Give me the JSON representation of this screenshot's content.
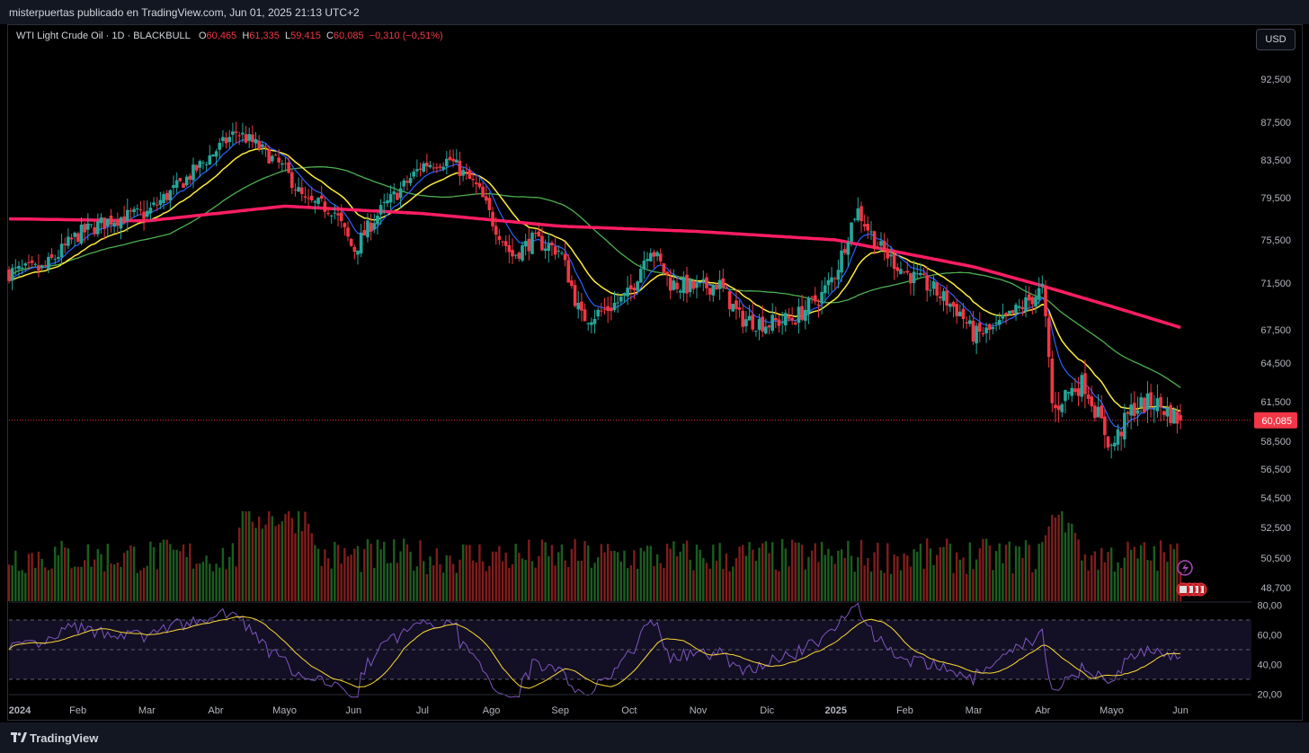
{
  "header": {
    "published_text": "misterpuertas publicado en TradingView.com, Jun 01, 2025 21:13 UTC+2"
  },
  "legend": {
    "symbol": "WTI Light Crude Oil · 1D · BLACKBULL",
    "o_label": "O",
    "o_value": "60,465",
    "h_label": "H",
    "h_value": "61,335",
    "l_label": "L",
    "l_value": "59,415",
    "c_label": "C",
    "c_value": "60,085",
    "change": "−0,310 (−0,51%)"
  },
  "currency_button": "USD",
  "footer": {
    "brand": "TradingView"
  },
  "colors": {
    "up": "#26a69a",
    "down": "#f23645",
    "ema_fast": "#2962ff",
    "ema_mid": "#ffeb3b",
    "sma_slow": "#4caf50",
    "sma_long": "#ff1d64",
    "rsi": "#7e57c2",
    "rsi_ma": "#fdd835"
  },
  "chart_data": {
    "type": "candlestick",
    "price_axis": {
      "ticks": [
        "92,500",
        "87,500",
        "83,500",
        "79,500",
        "75,500",
        "71,500",
        "67,500",
        "64,500",
        "61,500",
        "58,500",
        "56,500",
        "54,500",
        "52,500",
        "50,500",
        "48,700"
      ],
      "last_price_label": "60,085",
      "ylim": [
        47.5,
        95
      ]
    },
    "time_axis": {
      "labels": [
        "2024",
        "Feb",
        "Mar",
        "Abr",
        "Mayo",
        "Jun",
        "Jul",
        "Ago",
        "Sep",
        "Oct",
        "Nov",
        "Dic",
        "2025",
        "Feb",
        "Mar",
        "Abr",
        "Mayo",
        "Jun"
      ]
    },
    "rsi_axis": {
      "ticks": [
        "80,00",
        "60,00",
        "40,00",
        "20,00"
      ],
      "upper_band": 70,
      "lower_band": 30
    },
    "series": [
      {
        "name": "price",
        "anchors": [
          {
            "month": 0,
            "close": 72.5
          },
          {
            "month": 0.5,
            "close": 72.8
          },
          {
            "month": 1,
            "close": 76.0
          },
          {
            "month": 1.5,
            "close": 77.5
          },
          {
            "month": 2,
            "close": 78.0
          },
          {
            "month": 2.5,
            "close": 81.0
          },
          {
            "month": 3,
            "close": 84.5
          },
          {
            "month": 3.3,
            "close": 86.5
          },
          {
            "month": 3.6,
            "close": 85.0
          },
          {
            "month": 4,
            "close": 82.5
          },
          {
            "month": 4.3,
            "close": 79.0
          },
          {
            "month": 4.7,
            "close": 78.5
          },
          {
            "month": 5,
            "close": 74.5
          },
          {
            "month": 5.3,
            "close": 77.5
          },
          {
            "month": 5.7,
            "close": 80.5
          },
          {
            "month": 6,
            "close": 83.0
          },
          {
            "month": 6.4,
            "close": 83.5
          },
          {
            "month": 6.8,
            "close": 80.5
          },
          {
            "month": 7,
            "close": 77.5
          },
          {
            "month": 7.3,
            "close": 74.0
          },
          {
            "month": 7.6,
            "close": 75.5
          },
          {
            "month": 8,
            "close": 74.5
          },
          {
            "month": 8.3,
            "close": 68.5
          },
          {
            "month": 8.6,
            "close": 69.0
          },
          {
            "month": 9,
            "close": 70.5
          },
          {
            "month": 9.3,
            "close": 75.0
          },
          {
            "month": 9.6,
            "close": 71.5
          },
          {
            "month": 10,
            "close": 71.0
          },
          {
            "month": 10.3,
            "close": 71.5
          },
          {
            "month": 10.6,
            "close": 68.5
          },
          {
            "month": 11,
            "close": 68.0
          },
          {
            "month": 11.4,
            "close": 68.5
          },
          {
            "month": 11.8,
            "close": 70.5
          },
          {
            "month": 12,
            "close": 72.5
          },
          {
            "month": 12.3,
            "close": 78.5
          },
          {
            "month": 12.6,
            "close": 75.0
          },
          {
            "month": 13,
            "close": 72.5
          },
          {
            "month": 13.4,
            "close": 71.0
          },
          {
            "month": 13.8,
            "close": 69.0
          },
          {
            "month": 14,
            "close": 67.0
          },
          {
            "month": 14.3,
            "close": 67.5
          },
          {
            "month": 14.6,
            "close": 69.0
          },
          {
            "month": 15,
            "close": 71.0
          },
          {
            "month": 15.15,
            "close": 60.5
          },
          {
            "month": 15.3,
            "close": 62.0
          },
          {
            "month": 15.6,
            "close": 63.0
          },
          {
            "month": 16,
            "close": 58.0
          },
          {
            "month": 16.3,
            "close": 61.0
          },
          {
            "month": 16.6,
            "close": 61.5
          },
          {
            "month": 17,
            "close": 60.085
          }
        ]
      },
      {
        "name": "EMA 9",
        "color": "#2962ff"
      },
      {
        "name": "EMA 20",
        "color": "#ffeb3b"
      },
      {
        "name": "SMA 50",
        "color": "#4caf50"
      },
      {
        "name": "SMA 200",
        "color": "#ff1d64",
        "anchors": [
          {
            "month": 0,
            "value": 77.5
          },
          {
            "month": 2,
            "value": 77.3
          },
          {
            "month": 4,
            "value": 78.7
          },
          {
            "month": 6,
            "value": 78.0
          },
          {
            "month": 8,
            "value": 76.8
          },
          {
            "month": 10,
            "value": 76.3
          },
          {
            "month": 12,
            "value": 75.5
          },
          {
            "month": 14,
            "value": 73.0
          },
          {
            "month": 16,
            "value": 69.5
          },
          {
            "month": 17,
            "value": 67.7
          }
        ]
      },
      {
        "name": "RSI 14",
        "color": "#7e57c2"
      }
    ]
  }
}
